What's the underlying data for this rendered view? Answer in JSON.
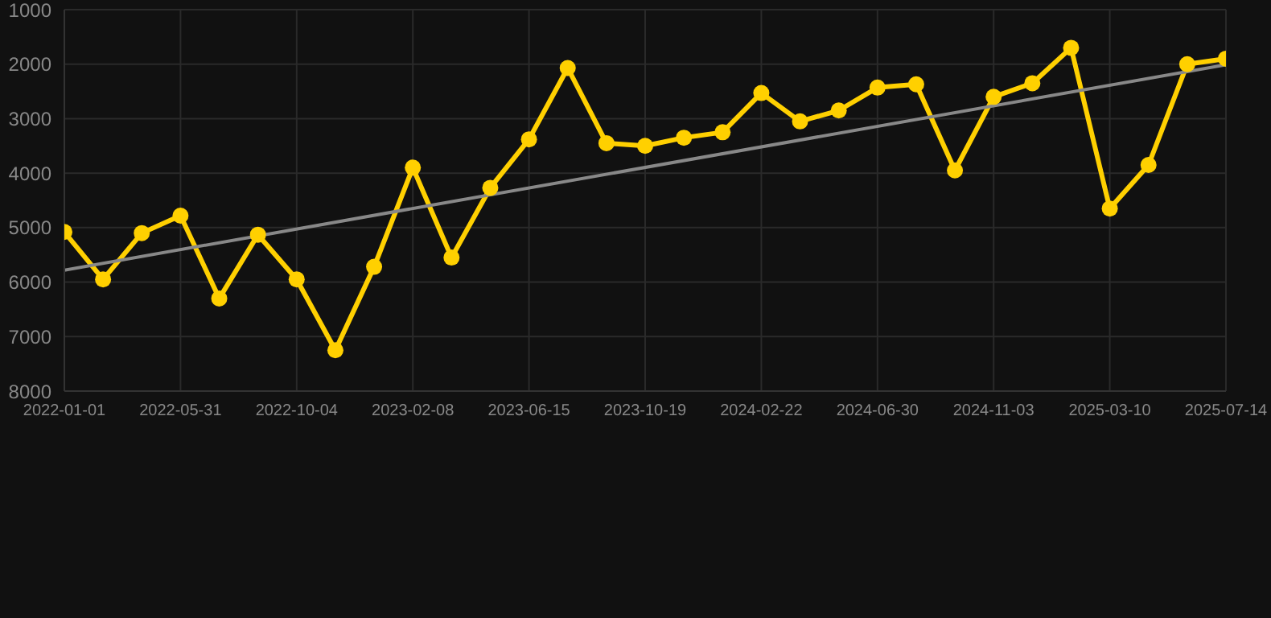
{
  "chart_data": {
    "type": "line",
    "categories": [
      "2022-01-01",
      null,
      null,
      "2022-05-31",
      null,
      null,
      "2022-10-04",
      null,
      null,
      "2023-02-08",
      null,
      null,
      "2023-06-15",
      null,
      null,
      "2023-10-19",
      null,
      null,
      "2024-02-22",
      null,
      null,
      "2024-06-30",
      null,
      null,
      "2024-11-03",
      null,
      null,
      "2025-03-10",
      null,
      null,
      "2025-07-14"
    ],
    "series": [
      {
        "color": "#ffd000",
        "marker": "circle",
        "values": [
          5080,
          5950,
          5100,
          4780,
          6300,
          5130,
          5950,
          7250,
          5720,
          3900,
          5550,
          4270,
          3380,
          2070,
          3450,
          3500,
          3350,
          3250,
          2530,
          3050,
          2850,
          2430,
          2370,
          3950,
          2600,
          2350,
          1700,
          4650,
          3850,
          2000,
          1900
        ]
      },
      {
        "type": "line",
        "color": "#888888",
        "marker": "none",
        "values": [
          5780,
          null,
          null,
          null,
          null,
          null,
          null,
          null,
          null,
          null,
          null,
          null,
          null,
          null,
          null,
          null,
          null,
          null,
          null,
          null,
          null,
          null,
          null,
          null,
          null,
          null,
          null,
          null,
          null,
          null,
          2010
        ]
      }
    ],
    "ylim": [
      8000,
      1000
    ],
    "yticks": [
      1000,
      2000,
      3000,
      4000,
      5000,
      6000,
      7000,
      8000
    ],
    "grid": true
  }
}
